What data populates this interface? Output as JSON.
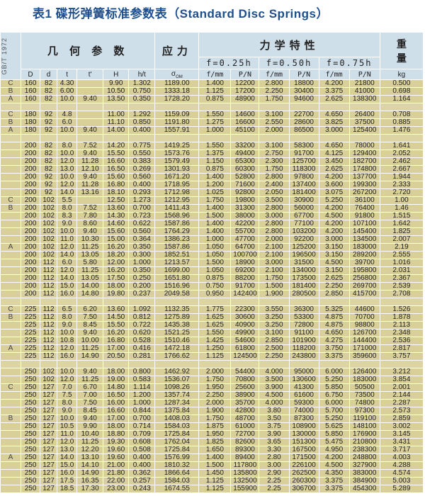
{
  "title": {
    "prefix": "表1 碟形弹簧标准参数表",
    "english": "（Standard Disc Springs）"
  },
  "header": {
    "standard": "GB/T 1972",
    "geometry": "几 何 参 数",
    "stress": "应力",
    "mechanics": "力学特性",
    "weight_1": "重",
    "weight_2": "量",
    "f025": "f=0.25h",
    "f050": "f=0.50h",
    "f075": "f=0.75h",
    "columns": {
      "D": "D",
      "d": "d",
      "t": "t",
      "tp": "t'",
      "H": "H",
      "ht": "h/t",
      "sigma": "σ",
      "sigma_sub": "OM",
      "f1": "f/mm",
      "P1": "P/N",
      "f2": "f/mm",
      "P2": "P/N",
      "f3": "f/mm",
      "P3": "P/N",
      "kg": "kg"
    }
  },
  "rows": [
    [
      "C",
      "160",
      "82",
      "4.30",
      "",
      "9.90",
      "1.302",
      "1189.00",
      "1.400",
      "12200",
      "2.800",
      "18800",
      "4.200",
      "21800",
      "0.500"
    ],
    [
      "B",
      "160",
      "82",
      "6.00",
      "",
      "10.50",
      "0.750",
      "1333.18",
      "1.125",
      "17200",
      "2.250",
      "30400",
      "3.375",
      "41000",
      "0.698"
    ],
    [
      "A",
      "160",
      "82",
      "10.0",
      "9.40",
      "13.50",
      "0.350",
      "1728.20",
      "0.875",
      "48900",
      "1.750",
      "94600",
      "2.625",
      "138300",
      "1.164"
    ],
    null,
    [
      "C",
      "180",
      "92",
      "4.8",
      "",
      "11.00",
      "1.292",
      "1159.09",
      "1.550",
      "14600",
      "3.100",
      "22700",
      "4.650",
      "26400",
      "0.708"
    ],
    [
      "B",
      "180",
      "92",
      "6.0",
      "",
      "11.10",
      "0.850",
      "1191.80",
      "1.275",
      "16600",
      "2.550",
      "28600",
      "3.825",
      "37500",
      "0.885"
    ],
    [
      "A",
      "180",
      "92",
      "10.0",
      "9.40",
      "14.00",
      "0.400",
      "1557.91",
      "1.000",
      "45100",
      "2.000",
      "86500",
      "3.000",
      "125400",
      "1.476"
    ],
    null,
    [
      "",
      "200",
      "82",
      "8.0",
      "7.52",
      "14.20",
      "0.775",
      "1419.25",
      "1.550",
      "33200",
      "3.100",
      "58300",
      "4.650",
      "78000",
      "1.641"
    ],
    [
      "",
      "200",
      "82",
      "10.0",
      "9.40",
      "15.50",
      "0.550",
      "1573.76",
      "1.375",
      "49400",
      "2.750",
      "91700",
      "4.125",
      "129400",
      "2.052"
    ],
    [
      "",
      "200",
      "82",
      "12.0",
      "11.28",
      "16.60",
      "0.383",
      "1579.49",
      "1.150",
      "65300",
      "2.300",
      "125700",
      "3.450",
      "182700",
      "2.462"
    ],
    [
      "",
      "200",
      "82",
      "13.0",
      "12.10",
      "16.50",
      "0.269",
      "1301.93",
      "0.875",
      "60300",
      "1.750",
      "118300",
      "2.625",
      "174800",
      "2.667"
    ],
    [
      "",
      "200",
      "92",
      "10.0",
      "9.40",
      "15.60",
      "0.560",
      "1671.20",
      "1.400",
      "52800",
      "2.800",
      "97800",
      "4.200",
      "137700",
      "1.944"
    ],
    [
      "",
      "200",
      "92",
      "12.0",
      "11.28",
      "16.80",
      "0.400",
      "1718.95",
      "1.200",
      "71600",
      "2.400",
      "137400",
      "3.600",
      "199300",
      "2.333"
    ],
    [
      "",
      "200",
      "92",
      "14.0",
      "13.16",
      "18.10",
      "0.293",
      "1712.98",
      "1.025",
      "92800",
      "2.050",
      "181400",
      "3.075",
      "267200",
      "2.720"
    ],
    [
      "C",
      "200",
      "102",
      "5.5",
      "",
      "12.50",
      "1.273",
      "1212.95",
      "1.750",
      "19800",
      "3.500",
      "30900",
      "5.250",
      "36100",
      "1.00"
    ],
    [
      "B",
      "200",
      "102",
      "8.0",
      "7.52",
      "13.60",
      "0.700",
      "1411.43",
      "1.400",
      "31300",
      "2.800",
      "56000",
      "4.200",
      "76400",
      "1.46"
    ],
    [
      "",
      "200",
      "102",
      "8.3",
      "7.80",
      "14.30",
      "0.723",
      "1568.96",
      "1.500",
      "38000",
      "3.000",
      "67700",
      "4.500",
      "91800",
      "1.515"
    ],
    [
      "",
      "200",
      "102",
      "9.0",
      "8.60",
      "14.60",
      "0.622",
      "1587.86",
      "1.400",
      "42200",
      "2.800",
      "77100",
      "4.200",
      "107100",
      "1.642"
    ],
    [
      "",
      "200",
      "102",
      "10.0",
      "9.40",
      "15.60",
      "0.560",
      "1764.29",
      "1.400",
      "55700",
      "2.800",
      "103200",
      "4.200",
      "145400",
      "1.825"
    ],
    [
      "",
      "200",
      "102",
      "11.0",
      "10.30",
      "15.00",
      "0.364",
      "1386.23",
      "1.000",
      "47700",
      "2.000",
      "92200",
      "3.000",
      "134500",
      "2.007"
    ],
    [
      "A",
      "200",
      "102",
      "12.0",
      "11.25",
      "16.20",
      "0.350",
      "1587.86",
      "1.050",
      "64700",
      "2.100",
      "125200",
      "3.150",
      "183000",
      "2.19"
    ],
    [
      "",
      "200",
      "102",
      "14.0",
      "13.05",
      "18.20",
      "0.300",
      "1852.51",
      "1.050",
      "100700",
      "2.100",
      "196500",
      "3.150",
      "289200",
      "2.555"
    ],
    [
      "",
      "200",
      "112",
      "6.0",
      "5.80",
      "12.00",
      "1.000",
      "1213.57",
      "1.500",
      "18900",
      "3.000",
      "31500",
      "4.500",
      "39700",
      "1.016"
    ],
    [
      "",
      "200",
      "112",
      "12.0",
      "11.25",
      "16.20",
      "0.350",
      "1699.00",
      "1.050",
      "69200",
      "2.100",
      "134000",
      "3.150",
      "195800",
      "2.031"
    ],
    [
      "",
      "200",
      "112",
      "14.0",
      "13.05",
      "17.50",
      "0.250",
      "1651.80",
      "0.875",
      "88200",
      "1.750",
      "173500",
      "2.625",
      "256800",
      "2.367"
    ],
    [
      "",
      "200",
      "112",
      "15.0",
      "14.00",
      "18.00",
      "0.200",
      "1516.96",
      "0.750",
      "91700",
      "1.500",
      "181400",
      "2.250",
      "269700",
      "2.539"
    ],
    [
      "",
      "200",
      "112",
      "16.0",
      "14.80",
      "19.80",
      "0.237",
      "2049.58",
      "0.950",
      "142400",
      "1.900",
      "280500",
      "2.850",
      "415700",
      "2.708"
    ],
    null,
    [
      "C",
      "225",
      "112",
      "6.5",
      "6.20",
      "13.60",
      "1.092",
      "1132.35",
      "1.775",
      "22300",
      "3.550",
      "36300",
      "5.325",
      "44600",
      "1.526"
    ],
    [
      "B",
      "225",
      "112",
      "8.0",
      "7.50",
      "14.50",
      "0.812",
      "1275.89",
      "1.625",
      "30600",
      "3.250",
      "53300",
      "4.875",
      "70700",
      "1.878"
    ],
    [
      "",
      "225",
      "112",
      "9.0",
      "8.45",
      "15.50",
      "0.722",
      "1435.38",
      "1.625",
      "40900",
      "3.250",
      "72800",
      "4.875",
      "98800",
      "2.113"
    ],
    [
      "",
      "225",
      "112",
      "10.0",
      "9.40",
      "16.20",
      "0.620",
      "1521.25",
      "1.550",
      "49900",
      "3.100",
      "91100",
      "4.650",
      "126700",
      "2.348"
    ],
    [
      "",
      "225",
      "112",
      "10.8",
      "10.00",
      "16.80",
      "0.528",
      "1510.46",
      "1.425",
      "54600",
      "2.850",
      "101900",
      "4.275",
      "144400",
      "2.536"
    ],
    [
      "A",
      "225",
      "112",
      "12.0",
      "11.25",
      "17.00",
      "0.416",
      "1472.18",
      "1.250",
      "61800",
      "2.500",
      "118200",
      "3.750",
      "171000",
      "2.817"
    ],
    [
      "",
      "225",
      "112",
      "16.0",
      "14.90",
      "20.50",
      "0.281",
      "1766.62",
      "1.125",
      "124500",
      "2.250",
      "243800",
      "3.375",
      "359600",
      "3.757"
    ],
    null,
    [
      "",
      "250",
      "102",
      "10.0",
      "9.40",
      "18.00",
      "0.800",
      "1462.92",
      "2.000",
      "54400",
      "4.000",
      "95000",
      "6.000",
      "126400",
      "3.212"
    ],
    [
      "",
      "250",
      "102",
      "12.0",
      "11.25",
      "19.00",
      "0.583",
      "1536.07",
      "1.750",
      "70800",
      "3.500",
      "130600",
      "5.250",
      "183000",
      "3.854"
    ],
    [
      "C",
      "250",
      "127",
      "7.0",
      "6.70",
      "14.80",
      "1.114",
      "1098.26",
      "1.950",
      "25600",
      "3.900",
      "41300",
      "5.850",
      "50500",
      "2.001"
    ],
    [
      "",
      "250",
      "127",
      "7.5",
      "7.00",
      "16.50",
      "1.200",
      "1357.74",
      "2.250",
      "38900",
      "4.500",
      "61600",
      "6.750",
      "73500",
      "2.144"
    ],
    [
      "",
      "250",
      "127",
      "8.0",
      "7.50",
      "16.00",
      "1.000",
      "1287.34",
      "2.000",
      "35700",
      "4.000",
      "59300",
      "6.000",
      "74800",
      "2.287"
    ],
    [
      "",
      "250",
      "127",
      "9.0",
      "8.45",
      "16.60",
      "0.844",
      "1375.84",
      "1.900",
      "42800",
      "3.80",
      "74000",
      "5.700",
      "97300",
      "2.573"
    ],
    [
      "B",
      "250",
      "127",
      "10.0",
      "9.40",
      "17.00",
      "0.700",
      "1408.03",
      "1.750",
      "48700",
      "3.50",
      "87300",
      "5.250",
      "119100",
      "2.859"
    ],
    [
      "",
      "250",
      "127",
      "10.5",
      "9.90",
      "18.00",
      "0.714",
      "1584.03",
      "1.875",
      "61000",
      "3.75",
      "108900",
      "5.625",
      "148100",
      "3.002"
    ],
    [
      "",
      "250",
      "127",
      "11.0",
      "10.40",
      "18.80",
      "0.709",
      "1725.84",
      "1.950",
      "72700",
      "3.90",
      "130000",
      "5.850",
      "176900",
      "3.145"
    ],
    [
      "",
      "250",
      "127",
      "12.0",
      "11.25",
      "19.30",
      "0.608",
      "1762.04",
      "1.825",
      "82600",
      "3.65",
      "151300",
      "5.475",
      "210800",
      "3.431"
    ],
    [
      "",
      "250",
      "127",
      "13.0",
      "12.20",
      "19.60",
      "0.508",
      "1725.84",
      "1.650",
      "89300",
      "3.30",
      "167500",
      "4.950",
      "238300",
      "3.717"
    ],
    [
      "A",
      "250",
      "127",
      "14.0",
      "13.10",
      "19.60",
      "0.400",
      "1576.99",
      "1.400",
      "89400",
      "2.80",
      "171500",
      "4.200",
      "248800",
      "4.003"
    ],
    [
      "",
      "250",
      "127",
      "15.0",
      "14.10",
      "21.00",
      "0.400",
      "1810.32",
      "1.500",
      "117800",
      "3.00",
      "226100",
      "4.500",
      "327900",
      "4.288"
    ],
    [
      "",
      "250",
      "127",
      "16.0",
      "14.90",
      "21.80",
      "0.362",
      "1866.64",
      "1.450",
      "135800",
      "2.90",
      "262500",
      "4.350",
      "383000",
      "4.574"
    ],
    [
      "",
      "250",
      "127",
      "17.5",
      "16.35",
      "22.00",
      "0.257",
      "1584.03",
      "1.125",
      "132500",
      "2.25",
      "260300",
      "3.375",
      "384900",
      "5.003"
    ],
    [
      "",
      "250",
      "127",
      "18.5",
      "17.30",
      "23.00",
      "0.243",
      "1674.55",
      "1.125",
      "155900",
      "2.25",
      "306700",
      "3.375",
      "454300",
      "5.289"
    ]
  ],
  "colors": {
    "title": "#1d4f8e",
    "header_bg": "#cfdfea",
    "row_bg": "#d9cf98"
  }
}
